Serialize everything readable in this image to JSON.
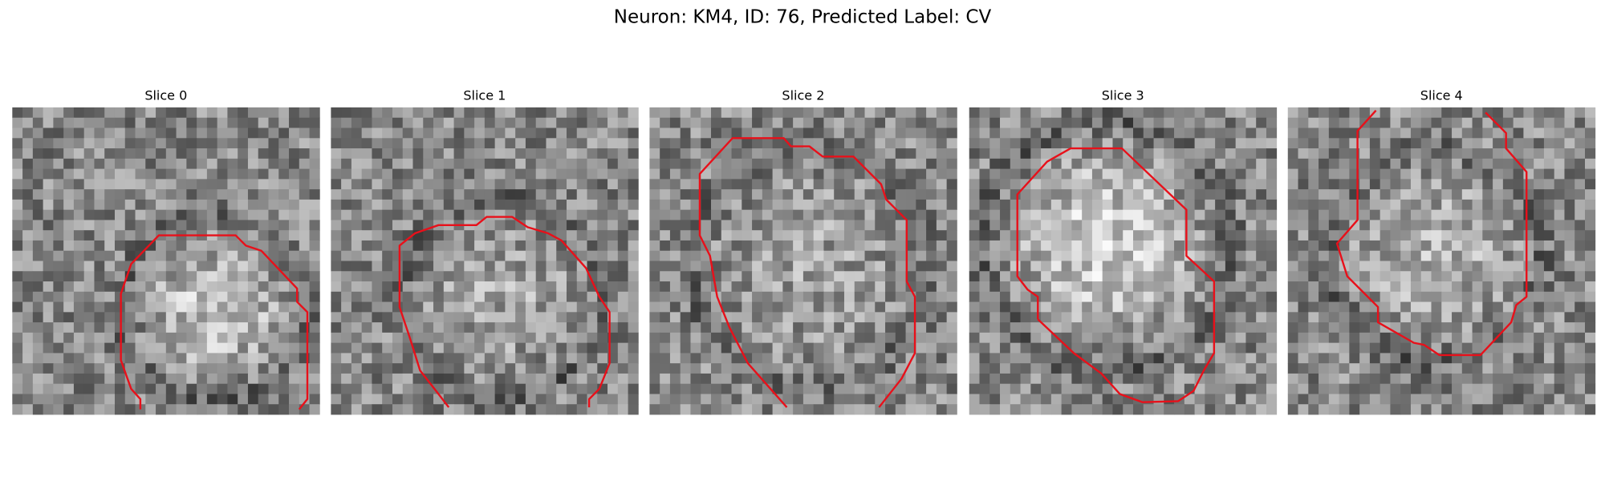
{
  "title": "Neuron: KM4, ID: 76, Predicted Label: CV",
  "panels": [
    {
      "title": "Slice 0"
    },
    {
      "title": "Slice 1"
    },
    {
      "title": "Slice 2"
    },
    {
      "title": "Slice 3"
    },
    {
      "title": "Slice 4"
    }
  ]
}
